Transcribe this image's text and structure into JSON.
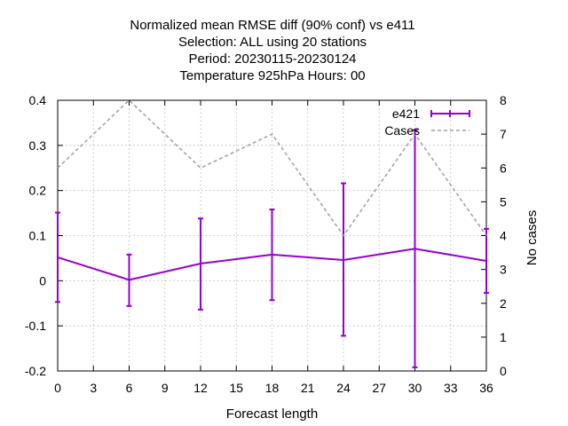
{
  "chart_data": {
    "type": "line",
    "title_lines": [
      "Normalized mean RMSE diff (90% conf) vs e411",
      "Selection: ALL using    20 stations",
      "Period: 20230115-20230124",
      "Temperature 925hPa   Hours:  00"
    ],
    "xlabel": "Forecast length",
    "ylabel": "",
    "y2label": "No cases",
    "xlim": [
      0,
      36
    ],
    "ylim": [
      -0.2,
      0.4
    ],
    "y2lim": [
      0,
      8
    ],
    "x_ticks": [
      0,
      3,
      6,
      9,
      12,
      15,
      18,
      21,
      24,
      27,
      30,
      33,
      36
    ],
    "y_ticks": [
      -0.2,
      -0.1,
      0,
      0.1,
      0.2,
      0.3,
      0.4
    ],
    "y_tick_labels": [
      "-0.2",
      "-0.1",
      "0",
      "0.1",
      "0.2",
      "0.3",
      "0.4"
    ],
    "y2_ticks": [
      0,
      1,
      2,
      3,
      4,
      5,
      6,
      7,
      8
    ],
    "grid": true,
    "legend_position": "top-right",
    "series": [
      {
        "name": "e421",
        "axis": "y",
        "style": "errorbars",
        "color": "#9400d3",
        "x": [
          0,
          6,
          12,
          18,
          24,
          30,
          36
        ],
        "values": [
          0.052,
          0.002,
          0.038,
          0.058,
          0.046,
          0.071,
          0.044
        ],
        "err_low": [
          -0.047,
          -0.056,
          -0.064,
          -0.043,
          -0.122,
          -0.192,
          -0.027
        ],
        "err_high": [
          0.151,
          0.058,
          0.138,
          0.158,
          0.216,
          0.334,
          0.115
        ]
      },
      {
        "name": "Cases",
        "axis": "y2",
        "style": "dashed",
        "color": "#a0a0a0",
        "x": [
          0,
          6,
          12,
          18,
          24,
          30,
          36
        ],
        "values": [
          6,
          8,
          6,
          7,
          4,
          7,
          4
        ]
      }
    ]
  }
}
